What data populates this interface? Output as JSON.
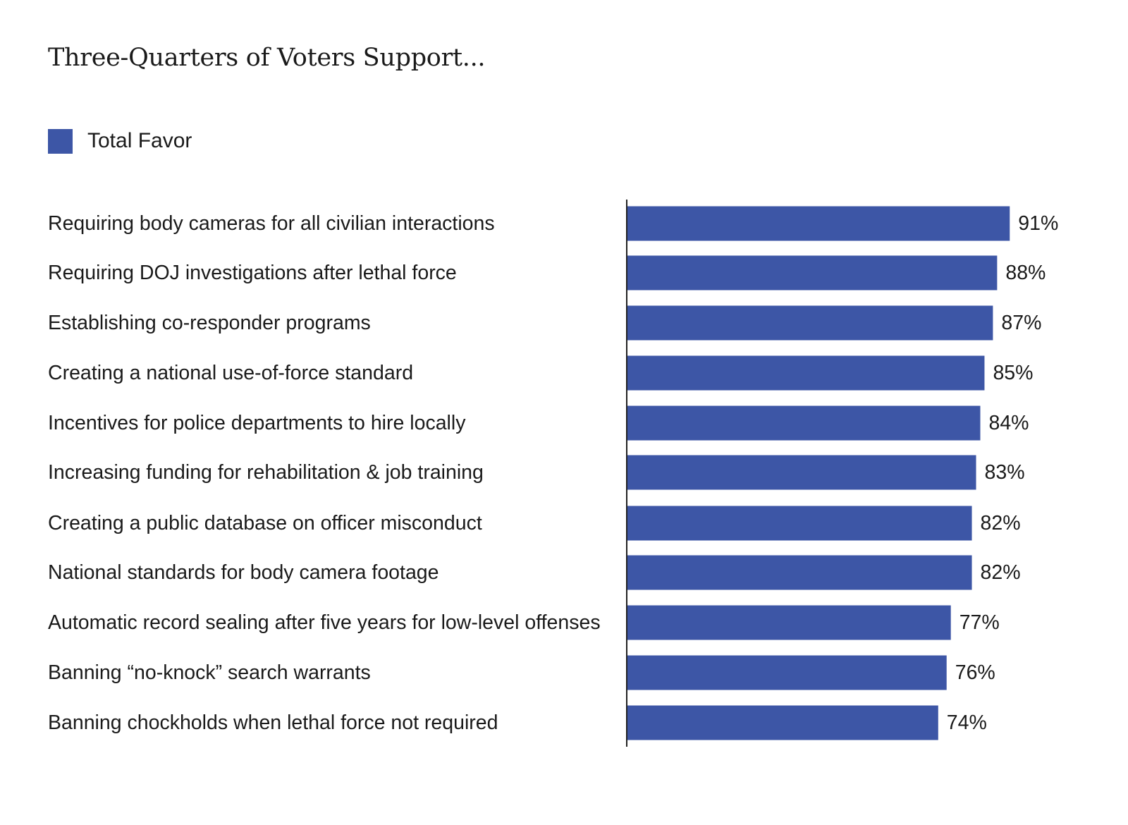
{
  "colors": {
    "bar": "#3d56a6",
    "axis": "#222222",
    "text": "#1a1a1a"
  },
  "chart_data": {
    "type": "bar",
    "orientation": "horizontal",
    "title": "Three-Quarters of Voters Support...",
    "legend": [
      {
        "name": "Total Favor",
        "position": "top-left"
      }
    ],
    "categories": [
      "Requiring body cameras for all civilian interactions",
      "Requiring DOJ investigations after lethal force",
      "Establishing co-responder programs",
      "Creating a national use-of-force standard",
      "Incentives for police departments to hire locally",
      "Increasing funding for rehabilitation & job training",
      "Creating a public database on officer misconduct",
      "National standards for body camera footage",
      "Automatic record sealing after five years for low-level offenses",
      "Banning “no-knock” search warrants",
      "Banning chockholds when lethal force not required"
    ],
    "series": [
      {
        "name": "Total Favor",
        "values": [
          91,
          88,
          87,
          85,
          84,
          83,
          82,
          82,
          77,
          76,
          74
        ]
      }
    ],
    "value_labels": [
      "91%",
      "88%",
      "87%",
      "85%",
      "84%",
      "83%",
      "82%",
      "82%",
      "77%",
      "76%",
      "74%"
    ],
    "value_suffix": "%",
    "xlim": [
      0,
      100
    ],
    "grid": false
  }
}
